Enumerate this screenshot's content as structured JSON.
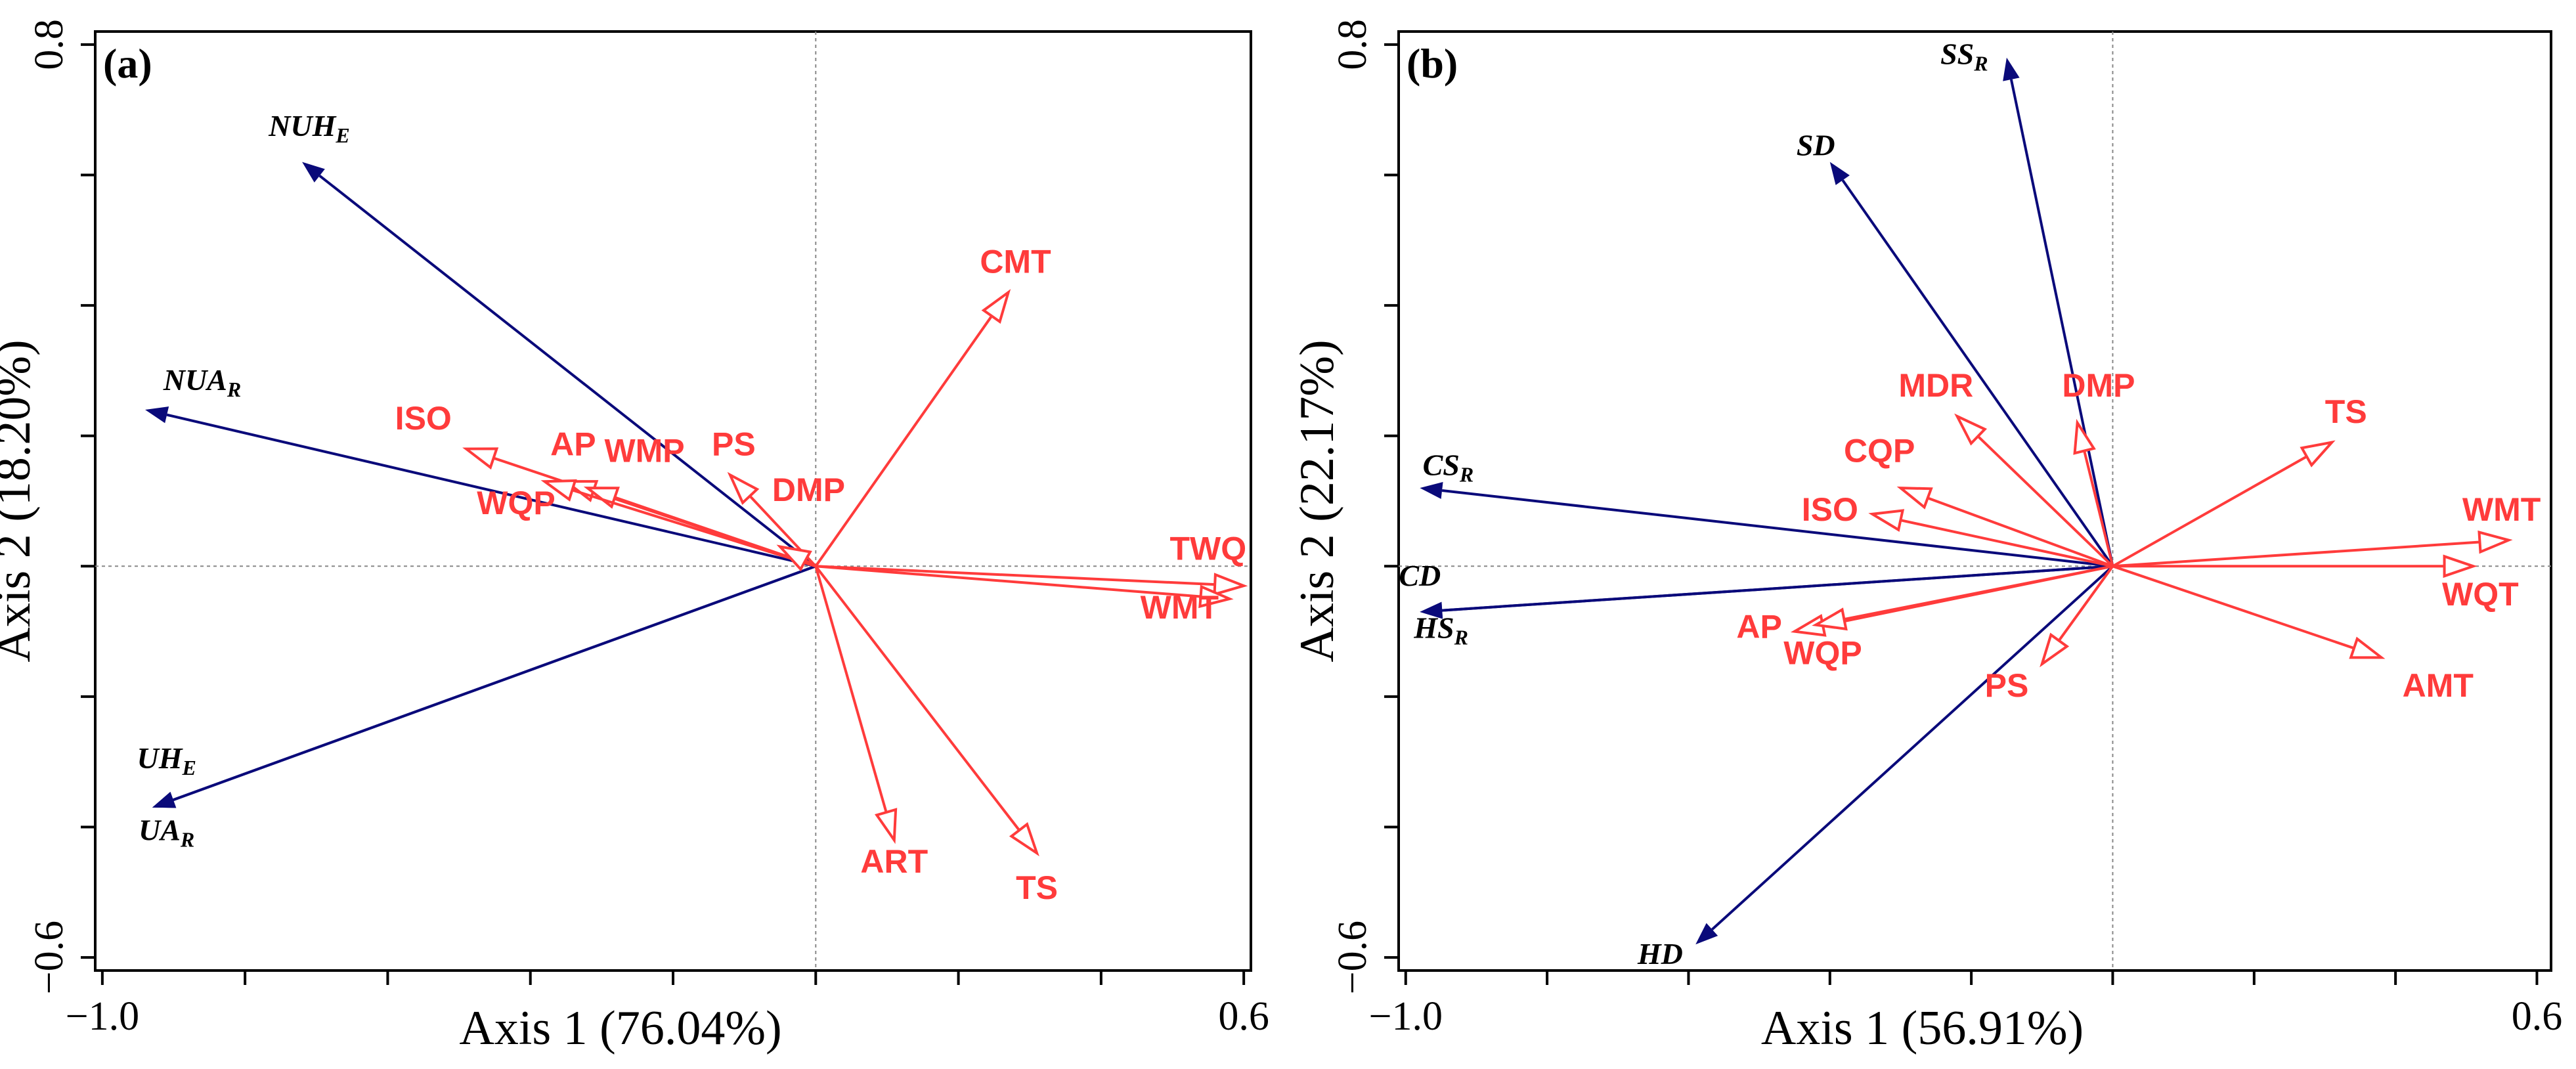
{
  "chart_data": [
    {
      "type": "scatter",
      "panel": "(a)",
      "xlabel": "Axis 1 (76.04%)",
      "ylabel": "Axis 2 (18.20%)",
      "xlim": [
        -1.01,
        0.61
      ],
      "ylim": [
        -0.62,
        0.82
      ],
      "xtick_labels": [
        {
          "value": -1.0,
          "text": "−1.0"
        },
        {
          "value": 0.6,
          "text": "0.6"
        }
      ],
      "ytick_labels": [
        {
          "value": 0.8,
          "text": "0.8"
        },
        {
          "value": -0.6,
          "text": "−0.6"
        }
      ],
      "minor_x": [
        -1.0,
        -0.8,
        -0.6,
        -0.4,
        -0.2,
        0.0,
        0.2,
        0.4,
        0.6
      ],
      "minor_y": [
        -0.6,
        -0.4,
        -0.2,
        0.0,
        0.2,
        0.4,
        0.6,
        0.8
      ],
      "species_color": "#0a0a7a",
      "env_color": "#ff3b3b",
      "species": [
        {
          "base": "NUH",
          "sub": "E",
          "x": -0.72,
          "y": 0.62,
          "lx": -0.71,
          "ly": 0.66
        },
        {
          "base": "NUA",
          "sub": "R",
          "x": -0.94,
          "y": 0.24,
          "lx": -0.86,
          "ly": 0.27
        },
        {
          "base": "UH",
          "sub": "E",
          "x": -0.93,
          "y": -0.37,
          "lx": -0.91,
          "ly": -0.31
        },
        {
          "base": "UA",
          "sub": "R",
          "x": -0.93,
          "y": -0.37,
          "lx": -0.91,
          "ly": -0.42
        }
      ],
      "env": [
        {
          "label": "CMT",
          "x": 0.27,
          "y": 0.42,
          "lx": 0.28,
          "ly": 0.45
        },
        {
          "label": "ISO",
          "x": -0.49,
          "y": 0.18,
          "lx": -0.55,
          "ly": 0.21
        },
        {
          "label": "AP",
          "x": -0.35,
          "y": 0.13,
          "lx": -0.34,
          "ly": 0.17
        },
        {
          "label": "WMP",
          "x": -0.32,
          "y": 0.12,
          "lx": -0.24,
          "ly": 0.16
        },
        {
          "label": "PS",
          "x": -0.12,
          "y": 0.14,
          "lx": -0.115,
          "ly": 0.17
        },
        {
          "label": "WQP",
          "x": -0.38,
          "y": 0.13,
          "lx": -0.42,
          "ly": 0.08
        },
        {
          "label": "DMP",
          "x": -0.05,
          "y": 0.03,
          "lx": -0.01,
          "ly": 0.1
        },
        {
          "label": "TWQ",
          "x": 0.6,
          "y": -0.03,
          "lx": 0.55,
          "ly": 0.01
        },
        {
          "label": "WMT",
          "x": 0.58,
          "y": -0.05,
          "lx": 0.51,
          "ly": -0.08
        },
        {
          "label": "ART",
          "x": 0.11,
          "y": -0.42,
          "lx": 0.11,
          "ly": -0.47
        },
        {
          "label": "TS",
          "x": 0.31,
          "y": -0.44,
          "lx": 0.31,
          "ly": -0.51
        }
      ]
    },
    {
      "type": "scatter",
      "panel": "(b)",
      "xlabel": "Axis 1 (56.91%)",
      "ylabel": "Axis 2 (22.17%)",
      "xlim": [
        -1.01,
        0.62
      ],
      "ylim": [
        -0.62,
        0.82
      ],
      "xtick_labels": [
        {
          "value": -1.0,
          "text": "−1.0"
        },
        {
          "value": 0.6,
          "text": "0.6"
        }
      ],
      "ytick_labels": [
        {
          "value": 0.8,
          "text": "0.8"
        },
        {
          "value": -0.6,
          "text": "−0.6"
        }
      ],
      "minor_x": [
        -1.0,
        -0.8,
        -0.6,
        -0.4,
        -0.2,
        0.0,
        0.2,
        0.4,
        0.6
      ],
      "minor_y": [
        -0.6,
        -0.4,
        -0.2,
        0.0,
        0.2,
        0.4,
        0.6,
        0.8
      ],
      "species_color": "#0a0a7a",
      "env_color": "#ff3b3b",
      "species": [
        {
          "base": "SS",
          "sub": "R",
          "x": -0.15,
          "y": 0.78,
          "lx": -0.21,
          "ly": 0.77
        },
        {
          "base": "SD",
          "sub": "",
          "x": -0.4,
          "y": 0.62,
          "lx": -0.42,
          "ly": 0.63
        },
        {
          "base": "CS",
          "sub": "R",
          "x": -0.98,
          "y": 0.12,
          "lx": -0.94,
          "ly": 0.14
        },
        {
          "base": "CD",
          "sub": "",
          "x": -0.98,
          "y": -0.07,
          "lx": -0.98,
          "ly": -0.03
        },
        {
          "base": "HS",
          "sub": "R",
          "x": -0.98,
          "y": -0.07,
          "lx": -0.95,
          "ly": -0.11
        },
        {
          "base": "HD",
          "sub": "",
          "x": -0.59,
          "y": -0.58,
          "lx": -0.64,
          "ly": -0.61
        }
      ],
      "env": [
        {
          "label": "MDR",
          "x": -0.22,
          "y": 0.23,
          "lx": -0.25,
          "ly": 0.26
        },
        {
          "label": "DMP",
          "x": -0.05,
          "y": 0.22,
          "lx": -0.02,
          "ly": 0.26
        },
        {
          "label": "CQP",
          "x": -0.3,
          "y": 0.12,
          "lx": -0.33,
          "ly": 0.16
        },
        {
          "label": "ISO",
          "x": -0.34,
          "y": 0.08,
          "lx": -0.4,
          "ly": 0.07
        },
        {
          "label": "TS",
          "x": 0.31,
          "y": 0.19,
          "lx": 0.33,
          "ly": 0.22
        },
        {
          "label": "WMT",
          "x": 0.56,
          "y": 0.04,
          "lx": 0.55,
          "ly": 0.07
        },
        {
          "label": "WQT",
          "x": 0.51,
          "y": 0.0,
          "lx": 0.52,
          "ly": -0.06
        },
        {
          "label": "AMT",
          "x": 0.38,
          "y": -0.14,
          "lx": 0.46,
          "ly": -0.2
        },
        {
          "label": "AP",
          "x": -0.45,
          "y": -0.1,
          "lx": -0.5,
          "ly": -0.11
        },
        {
          "label": "WQP",
          "x": -0.42,
          "y": -0.09,
          "lx": -0.41,
          "ly": -0.15
        },
        {
          "label": "PS",
          "x": -0.1,
          "y": -0.15,
          "lx": -0.15,
          "ly": -0.2
        }
      ]
    }
  ]
}
